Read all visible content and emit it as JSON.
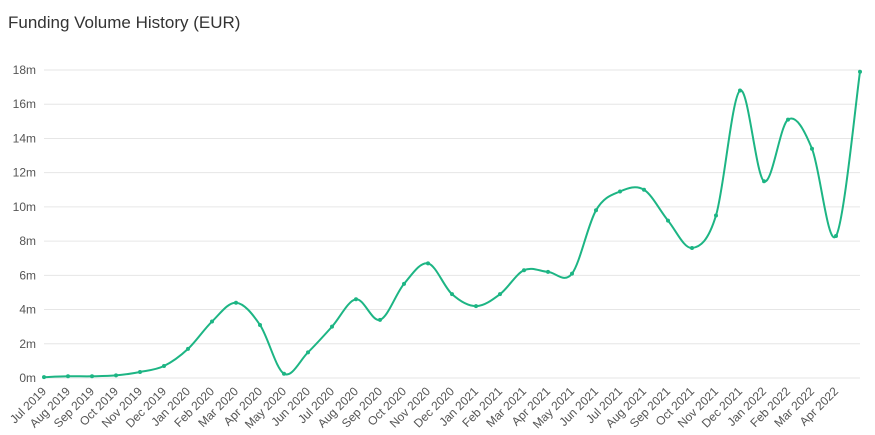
{
  "chart_data": {
    "type": "line",
    "title": "Funding Volume History (EUR)",
    "categories": [
      "Jul 2019",
      "Aug 2019",
      "Sep 2019",
      "Oct 2019",
      "Nov 2019",
      "Dec 2019",
      "Jan 2020",
      "Feb 2020",
      "Mar 2020",
      "Apr 2020",
      "May 2020",
      "Jun 2020",
      "Jul 2020",
      "Aug 2020",
      "Sep 2020",
      "Oct 2020",
      "Nov 2020",
      "Dec 2020",
      "Jan 2021",
      "Feb 2021",
      "Mar 2021",
      "Apr 2021",
      "May 2021",
      "Jun 2021",
      "Jul 2021",
      "Aug 2021",
      "Sep 2021",
      "Oct 2021",
      "Nov 2021",
      "Dec 2021",
      "Jan 2022",
      "Feb 2022",
      "Mar 2022",
      "Apr 2022",
      null
    ],
    "series": [
      {
        "name": "Funding Volume",
        "color": "#1db584",
        "values": [
          0.05,
          0.1,
          0.1,
          0.15,
          0.35,
          0.7,
          1.7,
          3.3,
          4.4,
          3.1,
          0.25,
          1.5,
          3.0,
          4.6,
          3.4,
          5.5,
          6.7,
          4.9,
          4.2,
          4.9,
          6.3,
          6.2,
          6.1,
          9.8,
          10.9,
          11.0,
          9.2,
          7.6,
          9.5,
          16.8,
          11.5,
          15.1,
          13.4,
          8.3,
          17.9
        ]
      }
    ],
    "ylim": [
      0,
      18
    ],
    "yticks": [
      {
        "value": 0,
        "label": "0m"
      },
      {
        "value": 2,
        "label": "2m"
      },
      {
        "value": 4,
        "label": "4m"
      },
      {
        "value": 6,
        "label": "6m"
      },
      {
        "value": 8,
        "label": "8m"
      },
      {
        "value": 10,
        "label": "10m"
      },
      {
        "value": 12,
        "label": "12m"
      },
      {
        "value": 14,
        "label": "14m"
      },
      {
        "value": 16,
        "label": "16m"
      },
      {
        "value": 18,
        "label": "18m"
      }
    ],
    "grid": true
  }
}
